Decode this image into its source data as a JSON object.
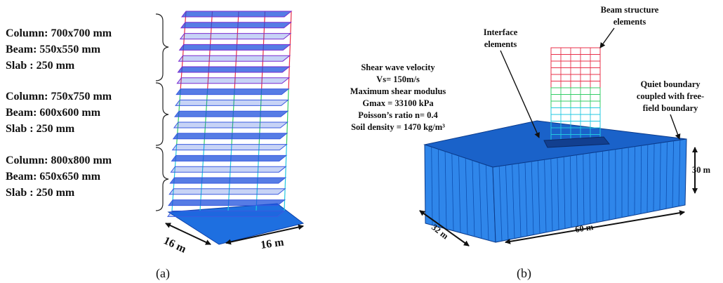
{
  "panel_a": {
    "groups": [
      [
        "Column: 700x700 mm",
        "Beam: 550x550 mm",
        "Slab : 250 mm"
      ],
      [
        "Column: 750x750 mm",
        "Beam: 600x600 mm",
        "Slab : 250 mm"
      ],
      [
        "Column: 800x800 mm",
        "Beam: 650x650 mm",
        "Slab : 250 mm"
      ]
    ],
    "width_label": "16 m",
    "depth_label": "16 m",
    "caption": "(a)"
  },
  "panel_b": {
    "interface_label": [
      "Interface",
      "elements"
    ],
    "beam_label": [
      "Beam structure",
      "elements"
    ],
    "soil_properties": [
      "Shear wave velocity",
      "Vs= 150m/s",
      "Maximum shear modulus",
      "Gmax = 33100 kPa",
      "Poisson’s ratio n= 0.4",
      "Soil density = 1470 kg/m³"
    ],
    "boundary_label": [
      "Quiet boundary",
      "coupled with free-",
      "field boundary"
    ],
    "height_label": "30 m",
    "length_label": "60 m",
    "width_label": "32 m",
    "caption": "(b)"
  }
}
